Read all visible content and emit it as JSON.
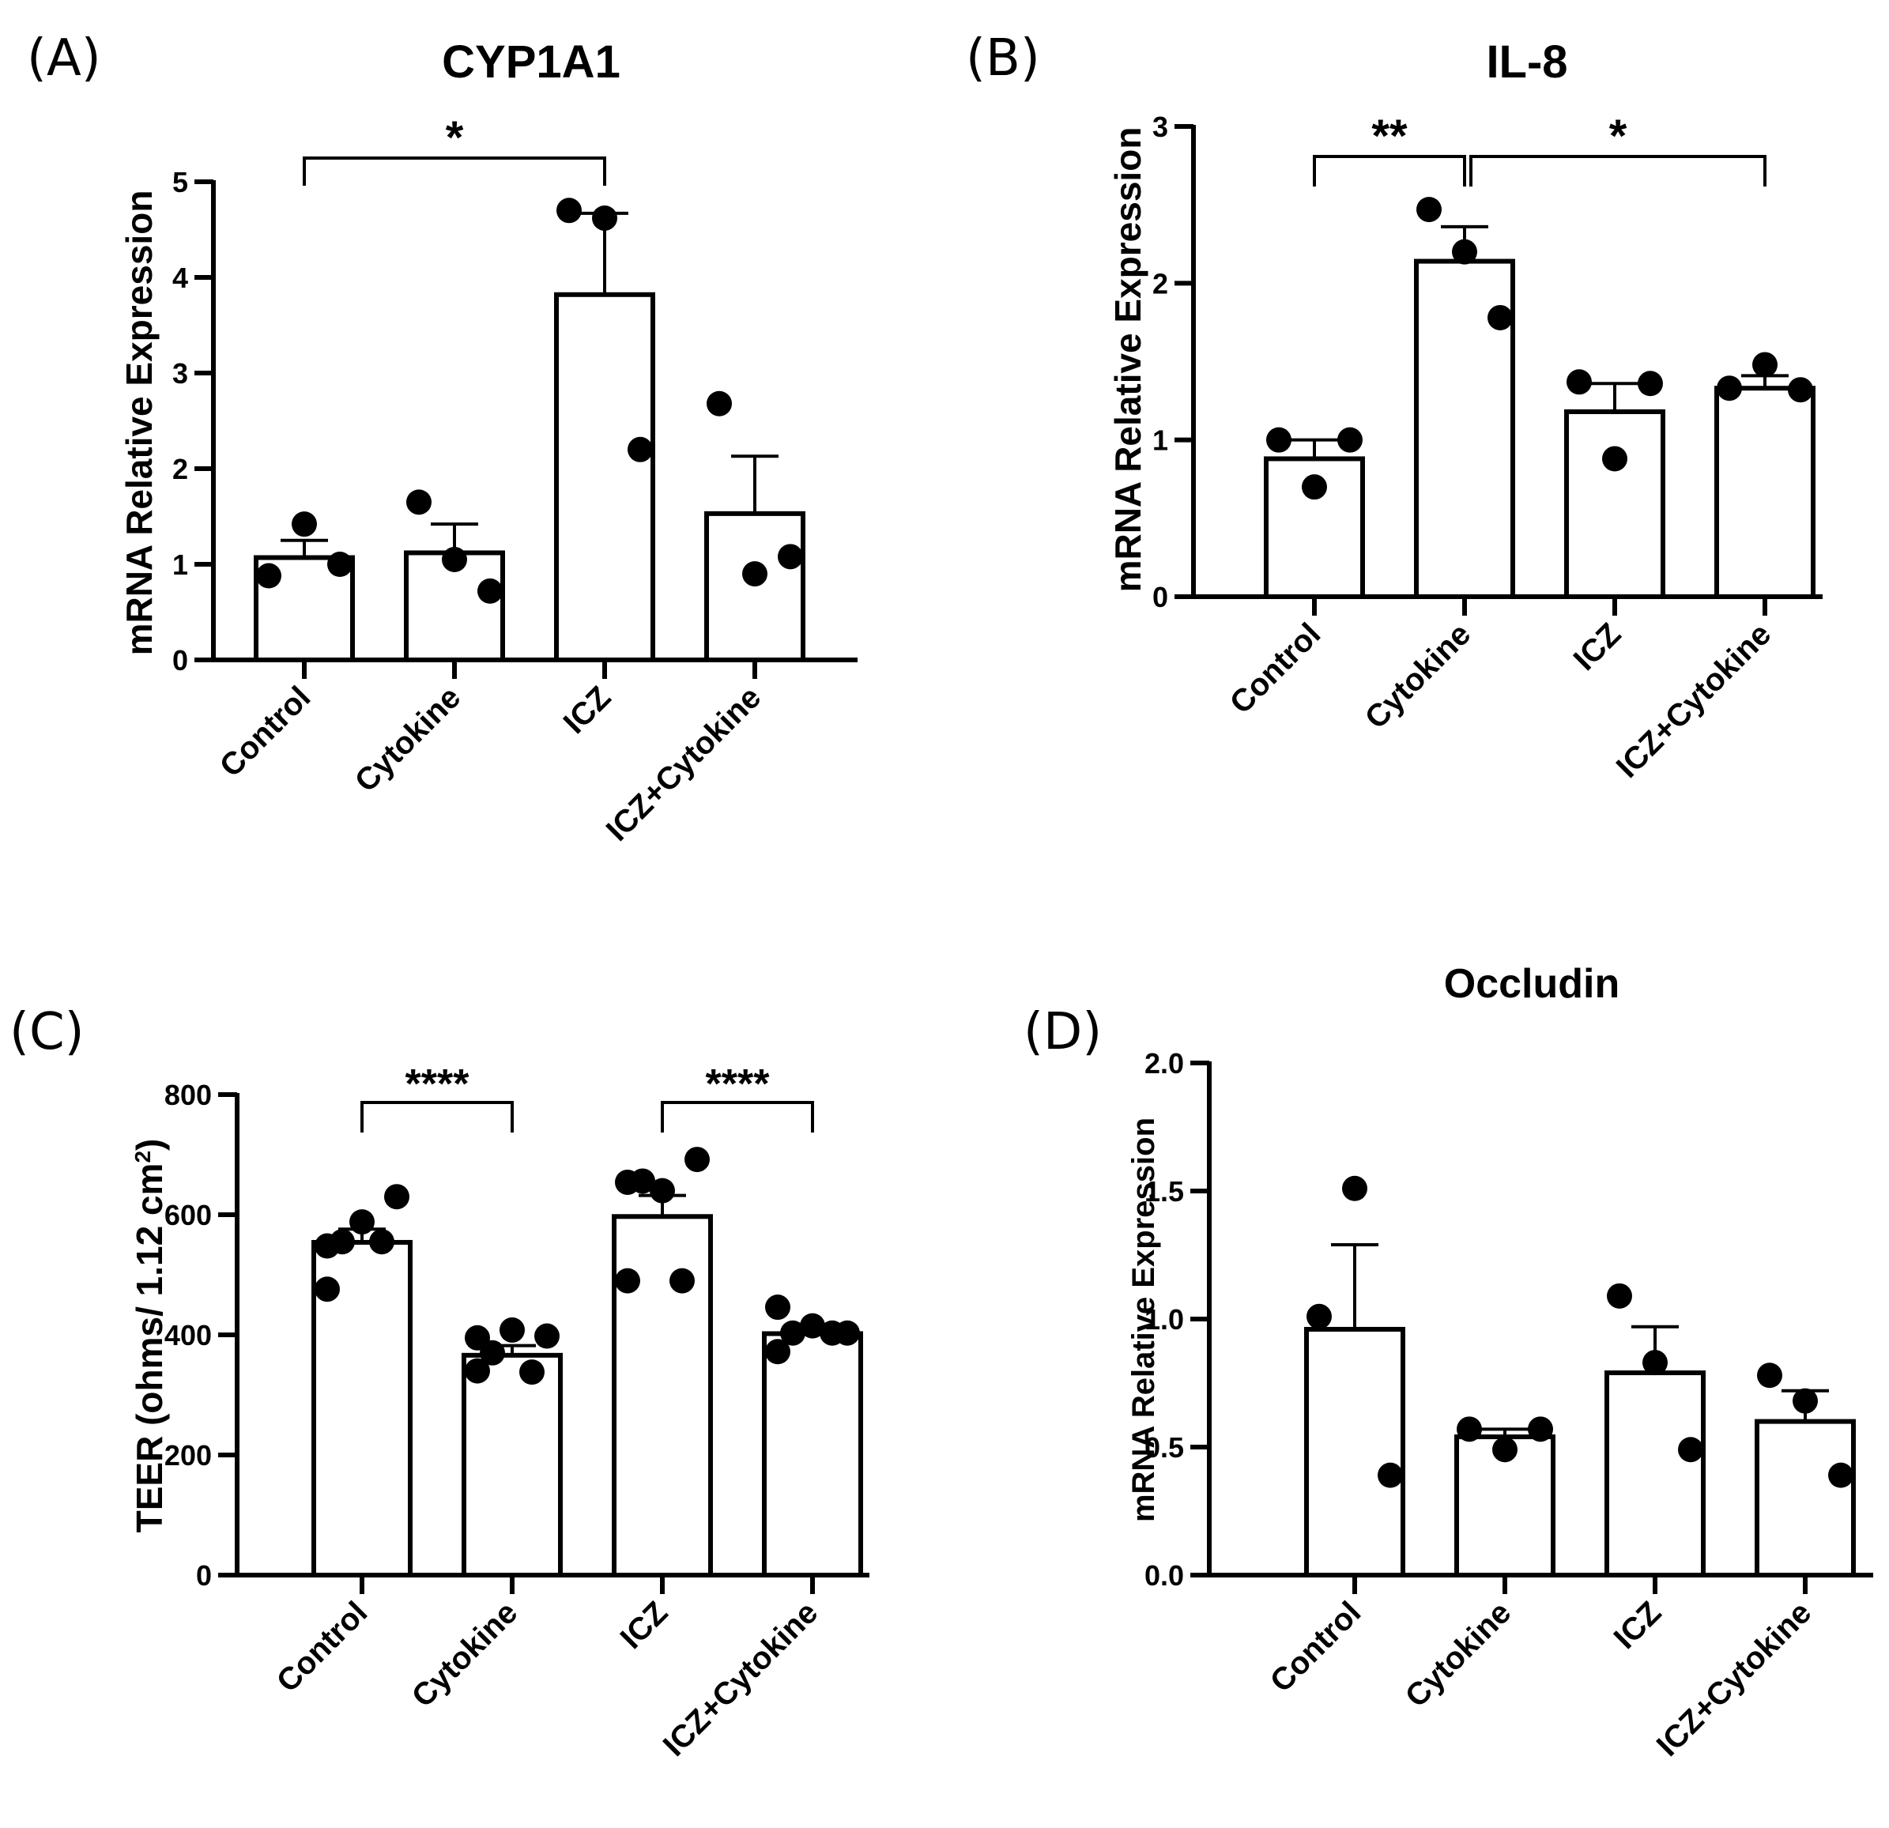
{
  "chart_data": [
    {
      "panel": "(A)",
      "type": "bar",
      "title": "CYP1A1",
      "ylabel": "mRNA Relative Expression",
      "xlabel": "",
      "ylim": [
        0,
        5
      ],
      "yticks": [
        "0",
        "1",
        "2",
        "3",
        "4",
        "5"
      ],
      "categories": [
        "Control",
        "Cytokine",
        "ICZ",
        "ICZ+Cytokine"
      ],
      "values": [
        1.07,
        1.12,
        3.82,
        1.53
      ],
      "error": [
        0.18,
        0.3,
        0.85,
        0.6
      ],
      "points": [
        [
          0.88,
          1.42,
          1.0
        ],
        [
          1.65,
          1.05,
          0.72
        ],
        [
          4.7,
          4.62,
          2.2
        ],
        [
          2.68,
          0.9,
          1.08
        ]
      ],
      "significance": [
        {
          "from": 0,
          "to": 2,
          "label": "*"
        }
      ]
    },
    {
      "panel": "(B)",
      "type": "bar",
      "title": "IL-8",
      "ylabel": "mRNA Relative Expression",
      "xlabel": "",
      "ylim": [
        0,
        3
      ],
      "yticks": [
        "0",
        "1",
        "2",
        "3"
      ],
      "categories": [
        "Control",
        "Cytokine",
        "ICZ",
        "ICZ+Cytokine"
      ],
      "values": [
        0.88,
        2.14,
        1.18,
        1.33
      ],
      "error": [
        0.12,
        0.22,
        0.18,
        0.08
      ],
      "points": [
        [
          1.0,
          0.7,
          1.0
        ],
        [
          2.47,
          2.2,
          1.78
        ],
        [
          1.37,
          0.88,
          1.36
        ],
        [
          1.33,
          1.48,
          1.32
        ]
      ],
      "significance": [
        {
          "from": 0,
          "to": 1,
          "label": "**"
        },
        {
          "from": 1,
          "to": 3,
          "label": "*"
        }
      ]
    },
    {
      "panel": "(C)",
      "type": "bar",
      "title": "",
      "ylabel": "TEER (ohms/ 1.12 cm²)",
      "xlabel": "",
      "ylim": [
        0,
        800
      ],
      "yticks": [
        "0",
        "200",
        "400",
        "600",
        "800"
      ],
      "categories": [
        "Control",
        "Cytokine",
        "ICZ",
        "ICZ+Cytokine"
      ],
      "values": [
        554,
        366,
        597,
        402
      ],
      "error": [
        22,
        16,
        35,
        13
      ],
      "points": [
        [
          548,
          588,
          630,
          555,
          555,
          476
        ],
        [
          395,
          408,
          398,
          370,
          338,
          340
        ],
        [
          654,
          640,
          692,
          656,
          490,
          490
        ],
        [
          446,
          415,
          403,
          403,
          403,
          372
        ]
      ],
      "significance": [
        {
          "from": 0,
          "to": 1,
          "label": "****"
        },
        {
          "from": 2,
          "to": 3,
          "label": "****"
        }
      ]
    },
    {
      "panel": "(D)",
      "type": "bar",
      "title": "Occludin",
      "ylabel": "mRNA Relative Expression",
      "xlabel": "",
      "ylim": [
        0,
        2.0
      ],
      "yticks": [
        "0.0",
        "0.5",
        "1.0",
        "1.5",
        "2.0"
      ],
      "categories": [
        "Control",
        "Cytokine",
        "ICZ",
        "ICZ+Cytokine"
      ],
      "values": [
        0.96,
        0.54,
        0.79,
        0.6
      ],
      "error": [
        0.33,
        0.03,
        0.18,
        0.12
      ],
      "points": [
        [
          1.01,
          1.51,
          0.39
        ],
        [
          0.57,
          0.49,
          0.57
        ],
        [
          1.09,
          0.83,
          0.49
        ],
        [
          0.78,
          0.68,
          0.39
        ]
      ],
      "significance": []
    }
  ]
}
